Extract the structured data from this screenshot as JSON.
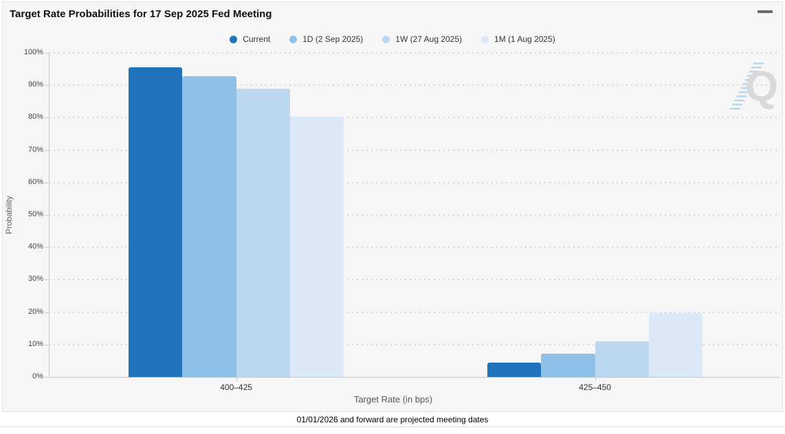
{
  "header": {
    "title": "Target Rate Probabilities for 17 Sep 2025 Fed Meeting",
    "icons": {
      "menu": "hamburger-menu-icon"
    }
  },
  "chart_data": {
    "type": "bar",
    "title": "Target Rate Probabilities for 17 Sep 2025 Fed Meeting",
    "categories": [
      "400–425",
      "425–450"
    ],
    "series": [
      {
        "name": "Current",
        "color": "#2173bc",
        "values": [
          95.6,
          4.4
        ]
      },
      {
        "name": "1D (2 Sep 2025)",
        "color": "#8fc0e8",
        "values": [
          92.7,
          7.3
        ]
      },
      {
        "name": "1W (27 Aug 2025)",
        "color": "#bcd7f0",
        "values": [
          88.9,
          11.1
        ]
      },
      {
        "name": "1M (1 Aug 2025)",
        "color": "#dbe8f7",
        "values": [
          80.3,
          19.7
        ]
      }
    ],
    "xlabel": "Target Rate (in bps)",
    "ylabel": "Probability",
    "ylim": [
      0,
      100
    ],
    "yticks": [
      "0%",
      "10%",
      "20%",
      "30%",
      "40%",
      "50%",
      "60%",
      "70%",
      "80%",
      "90%",
      "100%"
    ],
    "grid": "dotted-horizontal",
    "legend_position": "top-center"
  },
  "watermark": {
    "letter": "Q",
    "letter_color": "#d6d6d6",
    "stripe_color": "#aed7f2"
  },
  "footer": {
    "note": "01/01/2026 and forward are projected meeting dates"
  }
}
